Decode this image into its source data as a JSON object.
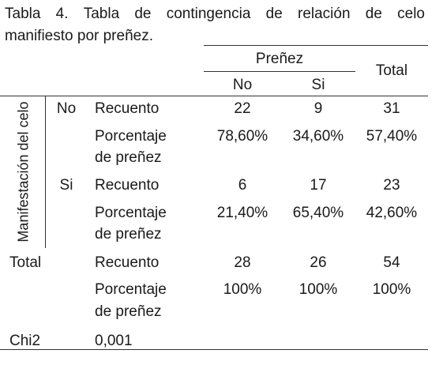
{
  "caption": {
    "words": [
      "Tabla",
      "4.",
      "Tabla",
      "de",
      "contingencia",
      "de",
      "relación",
      "de",
      "celo"
    ],
    "line2": "manifiesto por preñez."
  },
  "header": {
    "group": "Preñez",
    "col_no": "No",
    "col_si": "Si",
    "col_total": "Total"
  },
  "row_axis_label": "Manifestación del celo",
  "groups": [
    {
      "label": "No",
      "rows": [
        {
          "measure": [
            "Recuento"
          ],
          "no": "22",
          "si": "9",
          "total": "31"
        },
        {
          "measure": [
            "Porcentaje",
            "de preñez"
          ],
          "no": "78,60%",
          "si": "34,60%",
          "total": "57,40%"
        }
      ]
    },
    {
      "label": "Si",
      "rows": [
        {
          "measure": [
            "Recuento"
          ],
          "no": "6",
          "si": "17",
          "total": "23"
        },
        {
          "measure": [
            "Porcentaje",
            "de preñez"
          ],
          "no": "21,40%",
          "si": "65,40%",
          "total": "42,60%"
        }
      ]
    }
  ],
  "total": {
    "label": "Total",
    "rows": [
      {
        "measure": [
          "Recuento"
        ],
        "no": "28",
        "si": "26",
        "total": "54"
      },
      {
        "measure": [
          "Porcentaje",
          "de preñez"
        ],
        "no": "100%",
        "si": "100%",
        "total": "100%"
      }
    ]
  },
  "chi2": {
    "label": "Chi2",
    "value": "0,001"
  }
}
